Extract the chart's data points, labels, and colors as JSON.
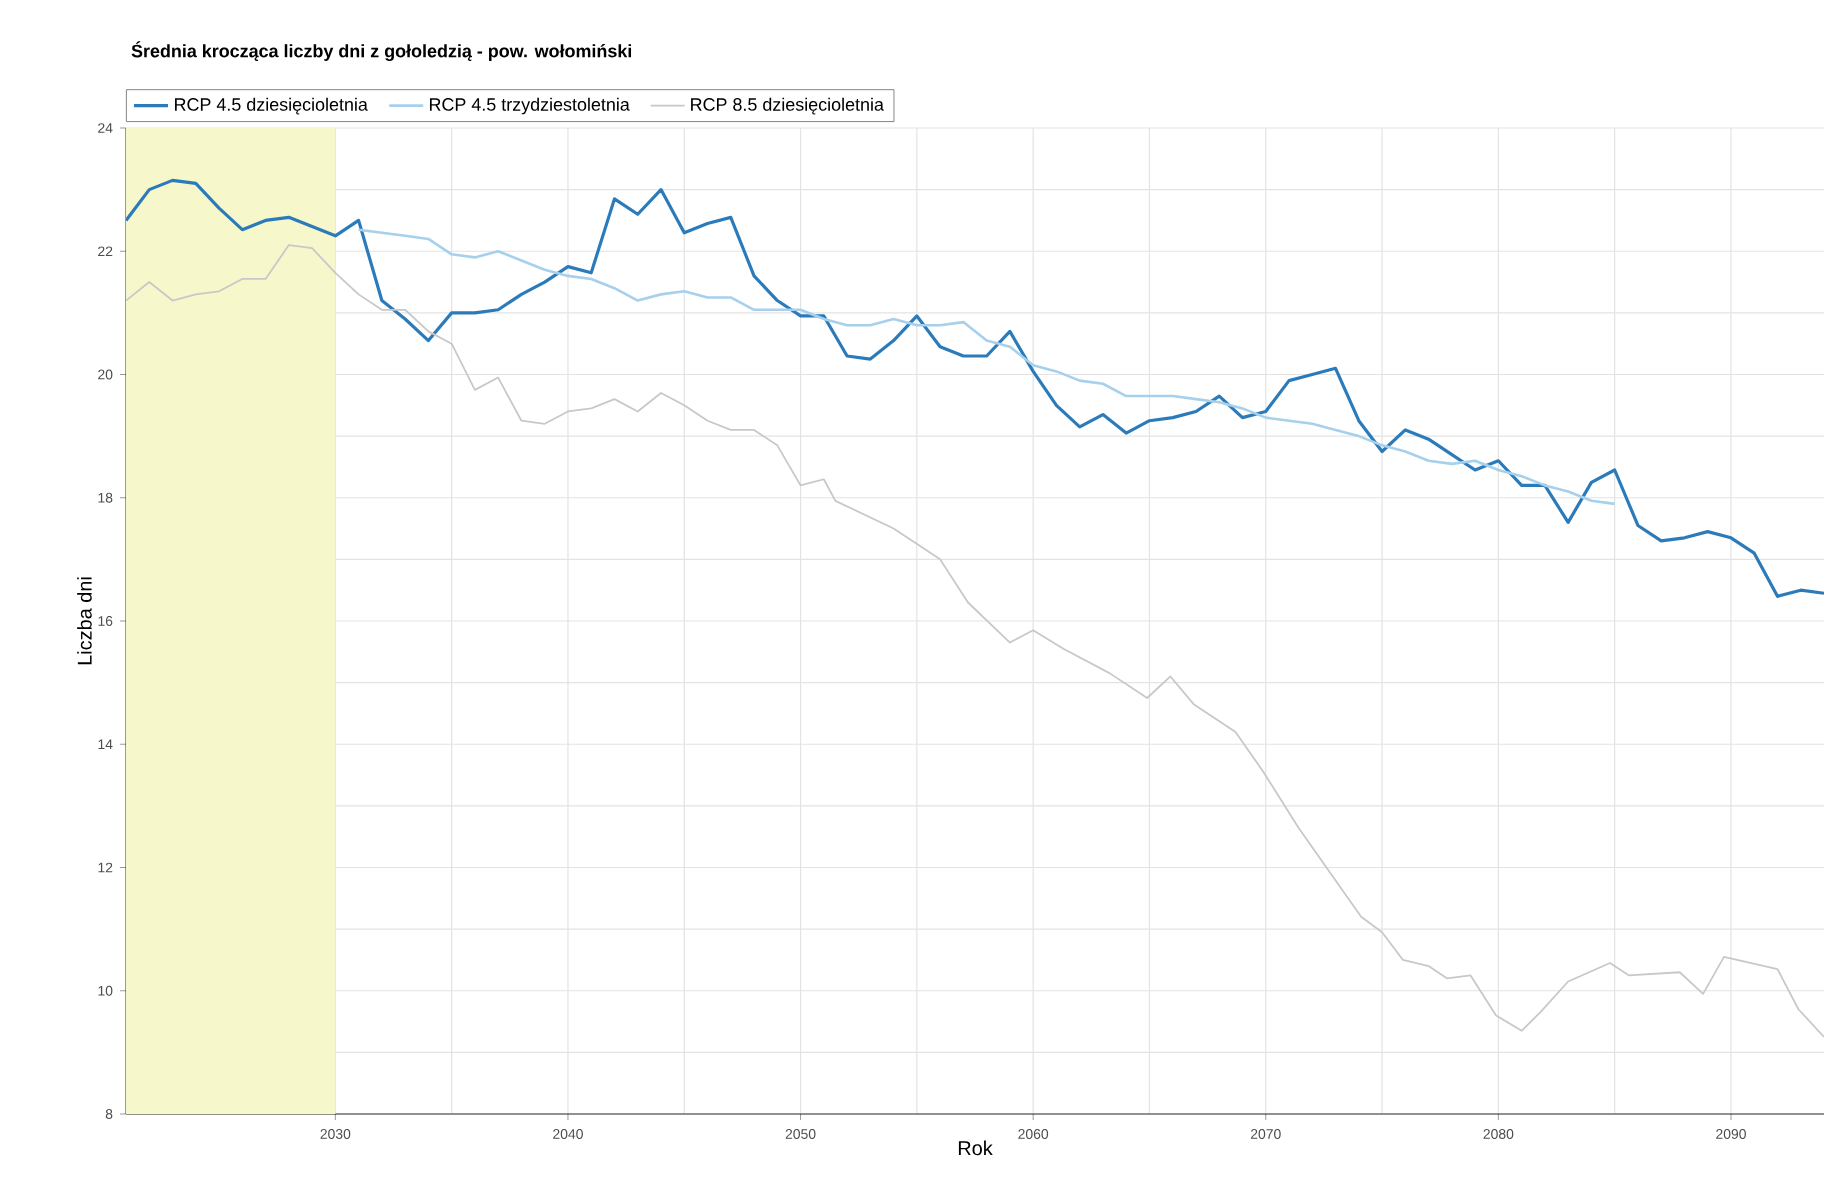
{
  "chart_data": {
    "type": "line",
    "title": "Średnia krocząca liczby dni z gołoledzią - pow. wołomiński",
    "xlabel": "Rok",
    "ylabel": "Liczba dni",
    "xlim": [
      2021,
      2094
    ],
    "ylim": [
      8,
      24
    ],
    "xticks": [
      2030,
      2040,
      2050,
      2060,
      2070,
      2080,
      2090
    ],
    "yticks": [
      8,
      10,
      12,
      14,
      16,
      18,
      20,
      22,
      24
    ],
    "grid": true,
    "legend": "top left",
    "marker": "none",
    "line_style": "solid",
    "bands": [
      {
        "axis": "x",
        "from": 2021,
        "to": 2030,
        "color": "#f7f7cc"
      }
    ],
    "series": [
      {
        "name": "RCP 4.5 dziesięcioletnia",
        "color": "#2b7bba",
        "x": [
          2021,
          2022,
          2023,
          2024,
          2025,
          2026,
          2027,
          2028,
          2029,
          2030,
          2031,
          2032,
          2033,
          2034,
          2035,
          2036,
          2037,
          2038,
          2039,
          2040,
          2041,
          2042,
          2043,
          2044,
          2045,
          2046,
          2047,
          2048,
          2049,
          2050,
          2051,
          2052,
          2053,
          2054,
          2055,
          2056,
          2057,
          2058,
          2059,
          2060,
          2061,
          2062,
          2063,
          2064,
          2065,
          2066,
          2067,
          2068,
          2069,
          2070,
          2071,
          2072,
          2073,
          2074,
          2075,
          2076,
          2077,
          2078,
          2079,
          2080,
          2081,
          2082,
          2083,
          2084,
          2085,
          2086,
          2087,
          2088,
          2089,
          2090,
          2091,
          2092,
          2093,
          2094
        ],
        "values": [
          22.5,
          23.0,
          23.15,
          23.1,
          22.7,
          22.35,
          22.5,
          22.55,
          22.4,
          22.25,
          22.5,
          21.2,
          20.9,
          20.55,
          21.0,
          21.0,
          21.05,
          21.3,
          21.5,
          21.75,
          21.65,
          22.85,
          22.6,
          23.0,
          22.3,
          22.45,
          22.55,
          21.6,
          21.2,
          20.95,
          20.95,
          20.3,
          20.25,
          20.55,
          20.95,
          20.45,
          20.3,
          20.3,
          20.7,
          20.05,
          19.5,
          19.15,
          19.35,
          19.05,
          19.25,
          19.3,
          19.4,
          19.65,
          19.3,
          19.4,
          19.9,
          20.0,
          20.1,
          19.25,
          18.75,
          19.1,
          18.95,
          18.7,
          18.45,
          18.6,
          18.2,
          18.2,
          17.6,
          18.25,
          18.45,
          17.55,
          17.3,
          17.35,
          17.45,
          17.35,
          17.1,
          16.4,
          16.5,
          16.45
        ]
      },
      {
        "name": "RCP 4.5 trzydziestoletnia",
        "color": "#a6d0ec",
        "x": [
          2031,
          2032,
          2033,
          2034,
          2035,
          2036,
          2037,
          2038,
          2039,
          2040,
          2041,
          2042,
          2043,
          2044,
          2045,
          2046,
          2047,
          2048,
          2049,
          2050,
          2051,
          2052,
          2053,
          2054,
          2055,
          2056,
          2057,
          2058,
          2059,
          2060,
          2061,
          2062,
          2063,
          2064,
          2065,
          2066,
          2067,
          2068,
          2069,
          2070,
          2071,
          2072,
          2073,
          2074,
          2075,
          2076,
          2077,
          2078,
          2079,
          2080,
          2081,
          2082,
          2083,
          2084,
          2085
        ],
        "values": [
          22.35,
          22.3,
          22.25,
          22.2,
          21.95,
          21.9,
          22.0,
          21.85,
          21.7,
          21.6,
          21.55,
          21.4,
          21.2,
          21.3,
          21.35,
          21.25,
          21.25,
          21.05,
          21.05,
          21.05,
          20.9,
          20.8,
          20.8,
          20.9,
          20.8,
          20.8,
          20.85,
          20.55,
          20.45,
          20.15,
          20.05,
          19.9,
          19.85,
          19.65,
          19.65,
          19.65,
          19.6,
          19.55,
          19.45,
          19.3,
          19.25,
          19.2,
          19.1,
          19.0,
          18.85,
          18.75,
          18.6,
          18.55,
          18.6,
          18.45,
          18.35,
          18.2,
          18.1,
          17.95,
          17.9
        ]
      },
      {
        "name": "RCP 8.5 dziesięcioletnia",
        "color": "#c8c8c8",
        "x": [
          2021,
          2022,
          2023,
          2024,
          2025,
          2026,
          2027,
          2028,
          2029,
          2030,
          2031,
          2032,
          2033,
          2034,
          2035,
          2036,
          2037,
          2038,
          2039,
          2040,
          2041,
          2042,
          2043,
          2044,
          2045,
          2046,
          2047,
          2048,
          2049,
          2050,
          2051,
          2051.5,
          2054,
          2056,
          2057.2,
          2059,
          2060,
          2061.3,
          2063.3,
          2064.9,
          2065.9,
          2066.9,
          2068.7,
          2069.9,
          2071.4,
          2072.7,
          2074.1,
          2075,
          2075.9,
          2077,
          2077.8,
          2078.8,
          2079.9,
          2081,
          2081.8,
          2083,
          2084.8,
          2085.6,
          2087.8,
          2088.8,
          2089.7,
          2092,
          2092.9,
          2094
        ],
        "values": [
          21.2,
          21.5,
          21.2,
          21.3,
          21.35,
          21.55,
          21.55,
          22.1,
          22.05,
          21.65,
          21.3,
          21.05,
          21.05,
          20.7,
          20.5,
          19.75,
          19.95,
          19.25,
          19.2,
          19.4,
          19.45,
          19.6,
          19.4,
          19.7,
          19.5,
          19.25,
          19.1,
          19.1,
          18.85,
          18.2,
          18.3,
          17.95,
          17.5,
          17.0,
          16.3,
          15.65,
          15.85,
          15.55,
          15.15,
          14.75,
          15.1,
          14.65,
          14.2,
          13.55,
          12.65,
          11.95,
          11.2,
          10.95,
          10.5,
          10.4,
          10.2,
          10.25,
          9.6,
          9.35,
          9.65,
          10.15,
          10.45,
          10.25,
          10.3,
          9.95,
          10.55,
          10.35,
          9.7,
          9.25
        ]
      }
    ]
  }
}
